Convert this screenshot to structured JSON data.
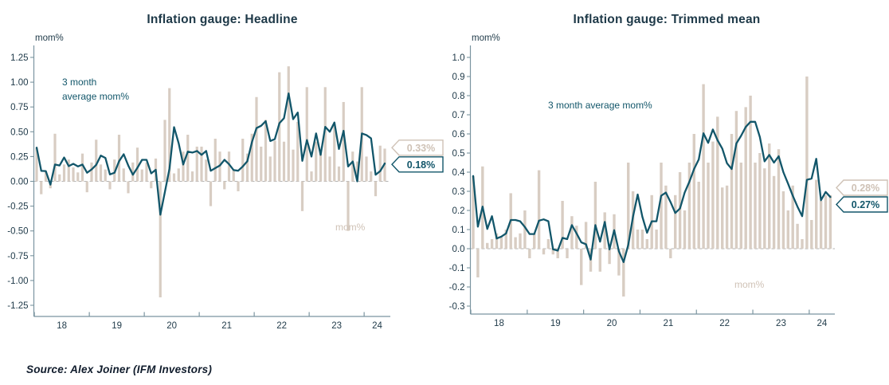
{
  "source_note": "Source: Alex Joiner (IFM Investors)",
  "colors": {
    "bar": "#d8cdc3",
    "bar_label_text": "#cfc2b6",
    "line": "#12566a",
    "title_text": "#1e3948",
    "tick_text": "#1e3948",
    "axis": "#7b95a0",
    "zero_dash": "#b3b3b3",
    "callout_box_bg": "#ffffff"
  },
  "chart_data": [
    {
      "type": "bar+line",
      "title": "Inflation gauge: Headline",
      "ylabel": "mom%",
      "x_range": "Jan 2018 - May 2024, monthly",
      "xtick_labels": [
        "18",
        "19",
        "20",
        "21",
        "22",
        "23",
        "24"
      ],
      "ytick_values": [
        1.25,
        1.0,
        0.75,
        0.5,
        0.25,
        0,
        -0.25,
        -0.5,
        -0.75,
        -1.0,
        -1.25
      ],
      "ytick_labels": [
        "1.25",
        "1.00",
        "0.75",
        "0.50",
        "0.25",
        "0.00",
        "-0.25",
        "-0.50",
        "-0.75",
        "-1.00",
        "-1.25"
      ],
      "ylim": [
        -1.25,
        1.25
      ],
      "grid": "zero-line dashed only",
      "series": [
        {
          "name": "mom%",
          "kind": "bar"
        },
        {
          "name": "3 month average mom%",
          "kind": "line",
          "note": "3-month rolling average of bar values, computed at render"
        }
      ],
      "bar_values": [
        0.34,
        -0.13,
        0.1,
        -0.07,
        0.48,
        0.07,
        0.17,
        0.22,
        0.14,
        0.09,
        0.28,
        -0.11,
        0.19,
        0.42,
        0.17,
        0.12,
        -0.08,
        0.22,
        0.47,
        0.13,
        -0.12,
        0.19,
        0.34,
        0.12,
        0.19,
        -0.07,
        0.23,
        -1.17,
        0.62,
        0.94,
        0.08,
        0.13,
        0.3,
        0.47,
        0.1,
        0.35,
        0.35,
        0.22,
        -0.25,
        0.43,
        0.3,
        -0.08,
        0.3,
        0.12,
        -0.1,
        0.43,
        0.28,
        0.48,
        0.85,
        0.35,
        0.62,
        0.25,
        0.41,
        1.1,
        0.4,
        1.16,
        0.32,
        0.6,
        -0.3,
        0.95,
        0.1,
        0.4,
        0.3,
        0.95,
        0.25,
        0.58,
        0.15,
        0.8,
        -0.5,
        0.3,
        0.2,
        0.95,
        0.25,
        0.1,
        -0.15,
        0.36,
        0.33
      ],
      "annotations": [
        {
          "text_lines": [
            "3 month",
            "average mom%"
          ],
          "series": "line"
        },
        {
          "text_lines": [
            "mom%"
          ],
          "series": "bar"
        }
      ],
      "callouts": [
        {
          "text": "0.33%",
          "series": "bar",
          "value": 0.33
        },
        {
          "text": "0.18%",
          "series": "line",
          "value": 0.18
        }
      ]
    },
    {
      "type": "bar+line",
      "title": "Inflation gauge: Trimmed mean",
      "ylabel": "mom%",
      "x_range": "Jan 2018 - May 2024, monthly",
      "xtick_labels": [
        "18",
        "19",
        "20",
        "21",
        "22",
        "23",
        "24"
      ],
      "ytick_values": [
        1.0,
        0.9,
        0.8,
        0.7,
        0.6,
        0.5,
        0.4,
        0.3,
        0.2,
        0.1,
        0,
        -0.1,
        -0.2,
        -0.3
      ],
      "ytick_labels": [
        "1.0",
        "0.9",
        "0.8",
        "0.7",
        "0.6",
        "0.5",
        "0.4",
        "0.3",
        "0.2",
        "0.1",
        "0.0",
        "-0.1",
        "-0.2",
        "-0.3"
      ],
      "ylim": [
        -0.3,
        1.0
      ],
      "grid": "zero-line dashed only",
      "series": [
        {
          "name": "mom%",
          "kind": "bar"
        },
        {
          "name": "3 month average mom%",
          "kind": "line",
          "note": "3-month rolling average of bar values, computed at render"
        }
      ],
      "bar_values": [
        0.38,
        -0.15,
        0.43,
        0.03,
        0.05,
        0.08,
        0.06,
        0.1,
        0.29,
        0.06,
        0.08,
        0.2,
        -0.05,
        0.08,
        0.41,
        -0.03,
        0.05,
        -0.03,
        -0.05,
        0.25,
        -0.05,
        0.17,
        0.12,
        -0.19,
        0.14,
        -0.12,
        0.35,
        -0.12,
        0.19,
        -0.08,
        0.18,
        -0.14,
        -0.25,
        0.45,
        0.3,
        0.1,
        0.1,
        0.05,
        0.28,
        0.1,
        0.45,
        0.33,
        -0.05,
        0.28,
        0.4,
        0.2,
        0.45,
        0.6,
        0.35,
        0.86,
        0.45,
        0.56,
        0.69,
        0.32,
        0.33,
        0.6,
        0.72,
        0.45,
        0.74,
        0.8,
        0.45,
        0.5,
        0.42,
        0.55,
        0.38,
        0.52,
        0.3,
        0.2,
        0.33,
        0.13,
        0.05,
        0.9,
        0.15,
        0.36,
        0.25,
        0.28,
        0.28
      ],
      "annotations": [
        {
          "text_lines": [
            "3 month average mom%"
          ],
          "series": "line"
        },
        {
          "text_lines": [
            "mom%"
          ],
          "series": "bar"
        }
      ],
      "callouts": [
        {
          "text": "0.28%",
          "series": "bar",
          "value": 0.28
        },
        {
          "text": "0.27%",
          "series": "line",
          "value": 0.27
        }
      ]
    }
  ]
}
